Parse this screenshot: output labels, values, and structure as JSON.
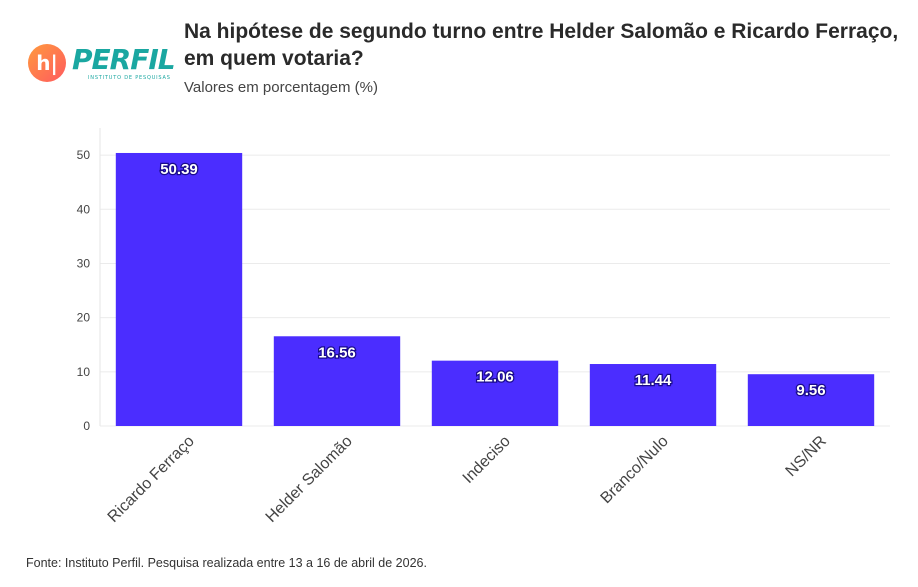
{
  "logo": {
    "mark": "h|",
    "wordmark": "PERFIL",
    "tagline": "INSTITUTO DE PESQUISAS"
  },
  "header": {
    "title": "Na hipótese de segundo turno entre Helder Salomão e Ricardo Ferraço, em quem votaria?",
    "subtitle": "Valores em porcentagem (%)"
  },
  "footer": {
    "source": "Fonte: Instituto Perfil. Pesquisa realizada entre 13 a 16 de abril de 2026."
  },
  "colors": {
    "bar": "#4b2dff",
    "grid": "#ebebeb",
    "label_text": "#ffffff"
  },
  "chart_data": {
    "type": "bar",
    "categories": [
      "Ricardo Ferraço",
      "Helder Salomão",
      "Indeciso",
      "Branco/Nulo",
      "NS/NR"
    ],
    "values": [
      50.39,
      16.56,
      12.06,
      11.44,
      9.56
    ],
    "value_labels": [
      "50.39",
      "16.56",
      "12.06",
      "11.44",
      "9.56"
    ],
    "yticks": [
      0,
      10,
      20,
      30,
      40,
      50
    ],
    "ylim": [
      0,
      55
    ],
    "xlabel": "",
    "ylabel": "",
    "grid": true
  }
}
